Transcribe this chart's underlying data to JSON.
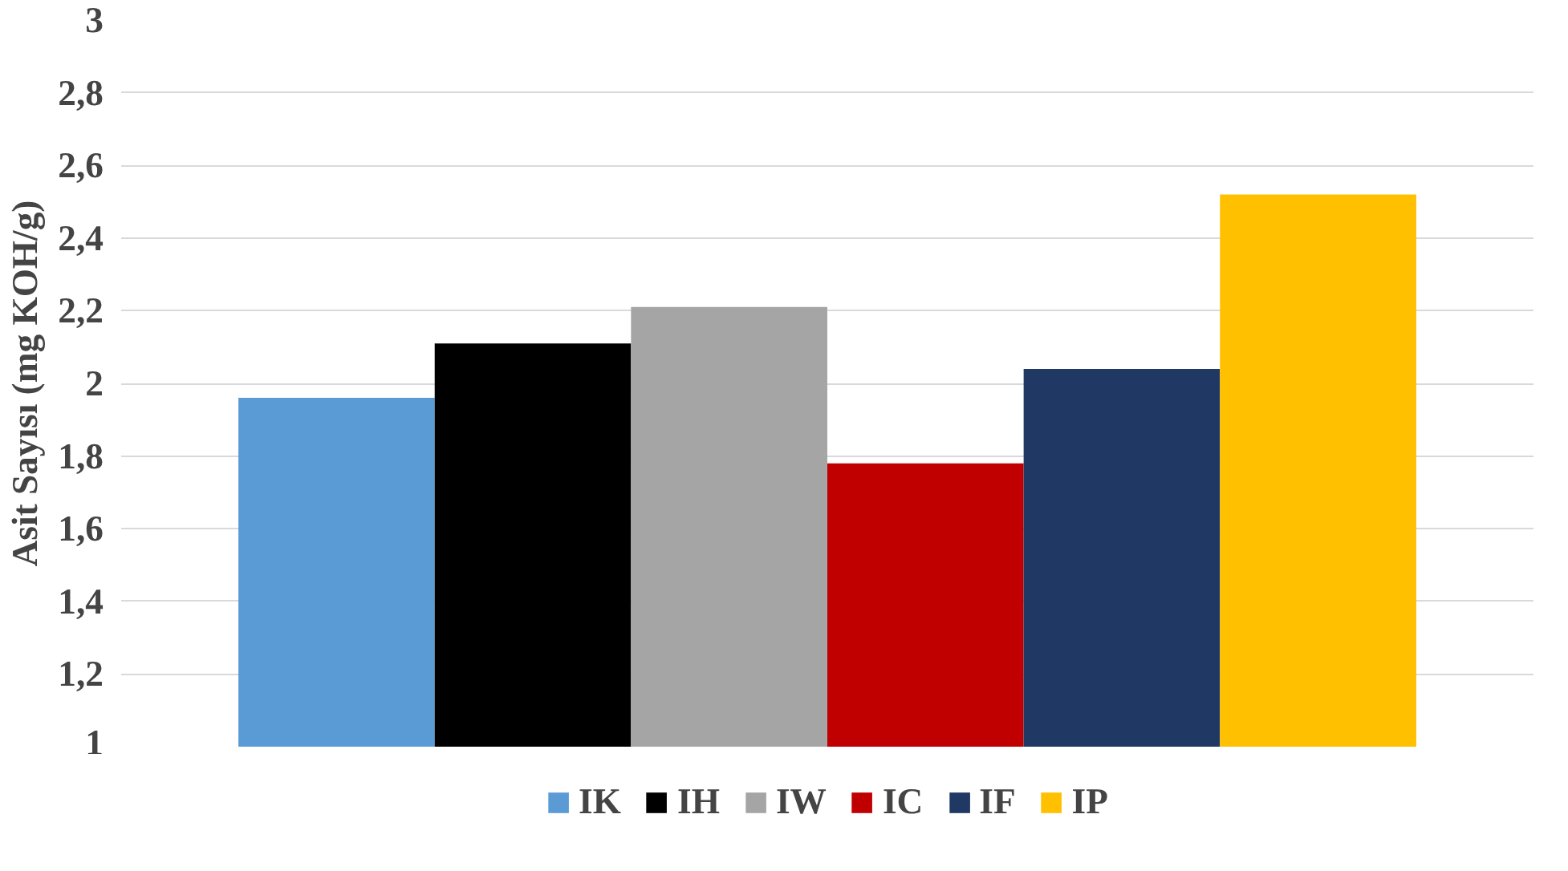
{
  "chart_data": {
    "type": "bar",
    "ylabel": "Asit Sayısı (mg KOH/g)",
    "categories": [
      null
    ],
    "series": [
      {
        "name": "IK",
        "color": "#5b9bd5",
        "values": [
          1.96
        ]
      },
      {
        "name": "IH",
        "color": "#000000",
        "values": [
          2.11
        ]
      },
      {
        "name": "IW",
        "color": "#a5a5a5",
        "values": [
          2.21
        ]
      },
      {
        "name": "IC",
        "color": "#c00000",
        "values": [
          1.78
        ]
      },
      {
        "name": "IF",
        "color": "#1f3864",
        "values": [
          2.04
        ]
      },
      {
        "name": "IP",
        "color": "#ffc000",
        "values": [
          2.52
        ]
      }
    ],
    "ylim": [
      1,
      3
    ],
    "yticks": [
      1,
      {
        "value": 1.2,
        "label": "1,2"
      },
      {
        "value": 1.4,
        "label": "1,4"
      },
      {
        "value": 1.6,
        "label": "1,6"
      },
      {
        "value": 1.8,
        "label": "1,8"
      },
      2,
      {
        "value": 2.2,
        "label": "2,2"
      },
      {
        "value": 2.4,
        "label": "2,4"
      },
      {
        "value": 2.6,
        "label": "2,6"
      },
      {
        "value": 2.8,
        "label": "2,8"
      },
      3
    ],
    "grid": "y",
    "legend": "bottom"
  }
}
